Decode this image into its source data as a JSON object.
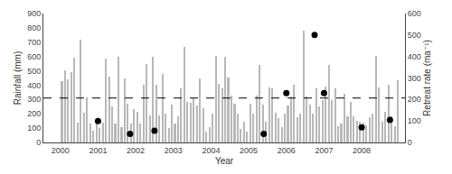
{
  "chart_data": {
    "type": "bar",
    "xlabel": "Year",
    "ylabel": "Rainfall (mm)",
    "y2label": "Retreat rate (ma⁻¹)",
    "xlim": [
      1999.55,
      2009.15
    ],
    "xticks": [
      2000,
      2001,
      2002,
      2003,
      2004,
      2005,
      2006,
      2007,
      2008
    ],
    "ylim": [
      0,
      900
    ],
    "yticks": [
      0,
      100,
      200,
      300,
      400,
      500,
      600,
      700,
      800,
      900
    ],
    "y2lim": [
      0,
      600
    ],
    "y2ticks": [
      0,
      100,
      200,
      300,
      400,
      500,
      600
    ],
    "grid": false,
    "reference_line": {
      "value": 310,
      "color": "#000000",
      "line_style": "dashed"
    },
    "series": [
      {
        "type": "bar",
        "color": "#b8b8b8",
        "x": [
          2000.041667,
          2000.125,
          2000.208333,
          2000.291667,
          2000.375,
          2000.458333,
          2000.541667,
          2000.625,
          2000.708333,
          2000.791667,
          2000.875,
          2000.958333,
          2001.041667,
          2001.125,
          2001.208333,
          2001.291667,
          2001.375,
          2001.458333,
          2001.541667,
          2001.625,
          2001.708333,
          2001.791667,
          2001.875,
          2001.958333,
          2002.041667,
          2002.125,
          2002.208333,
          2002.291667,
          2002.375,
          2002.458333,
          2002.541667,
          2002.625,
          2002.708333,
          2002.791667,
          2002.875,
          2002.958333,
          2003.041667,
          2003.125,
          2003.208333,
          2003.291667,
          2003.375,
          2003.458333,
          2003.541667,
          2003.625,
          2003.708333,
          2003.791667,
          2003.875,
          2003.958333,
          2004.041667,
          2004.125,
          2004.208333,
          2004.291667,
          2004.375,
          2004.458333,
          2004.541667,
          2004.625,
          2004.708333,
          2004.791667,
          2004.875,
          2004.958333,
          2005.041667,
          2005.125,
          2005.208333,
          2005.291667,
          2005.375,
          2005.458333,
          2005.541667,
          2005.625,
          2005.708333,
          2005.791667,
          2005.875,
          2005.958333,
          2006.041667,
          2006.125,
          2006.208333,
          2006.291667,
          2006.375,
          2006.458333,
          2006.541667,
          2006.625,
          2006.708333,
          2006.791667,
          2006.875,
          2006.958333,
          2007.041667,
          2007.125,
          2007.208333,
          2007.291667,
          2007.375,
          2007.458333,
          2007.541667,
          2007.625,
          2007.708333,
          2007.791667,
          2007.875,
          2007.958333,
          2008.041667,
          2008.125,
          2008.208333,
          2008.291667,
          2008.375,
          2008.458333,
          2008.541667,
          2008.625,
          2008.708333,
          2008.791667,
          2008.875,
          2008.958333
        ],
        "values": [
          425,
          505,
          440,
          490,
          590,
          140,
          720,
          210,
          315,
          130,
          80,
          145,
          100,
          140,
          585,
          460,
          250,
          135,
          600,
          105,
          450,
          270,
          135,
          230,
          215,
          130,
          400,
          550,
          190,
          595,
          405,
          190,
          480,
          200,
          100,
          265,
          130,
          185,
          375,
          665,
          285,
          280,
          310,
          255,
          450,
          240,
          75,
          110,
          200,
          605,
          410,
          380,
          600,
          455,
          325,
          270,
          200,
          95,
          145,
          75,
          270,
          200,
          330,
          540,
          265,
          145,
          385,
          375,
          210,
          170,
          110,
          200,
          260,
          320,
          400,
          175,
          200,
          780,
          320,
          265,
          200,
          380,
          250,
          295,
          390,
          540,
          295,
          375,
          115,
          130,
          340,
          185,
          285,
          185,
          150,
          145,
          140,
          120,
          175,
          200,
          605,
          385,
          145,
          215,
          400,
          185,
          115,
          435
        ]
      },
      {
        "type": "scatter",
        "axis": "y2",
        "color": "#000000",
        "marker": "circle",
        "x": [
          2001.0,
          2001.85,
          2002.5,
          2005.4,
          2006.0,
          2006.75,
          2007.0,
          2008.0,
          2008.75
        ],
        "values": [
          100,
          40,
          55,
          40,
          230,
          500,
          230,
          70,
          105
        ]
      }
    ]
  }
}
